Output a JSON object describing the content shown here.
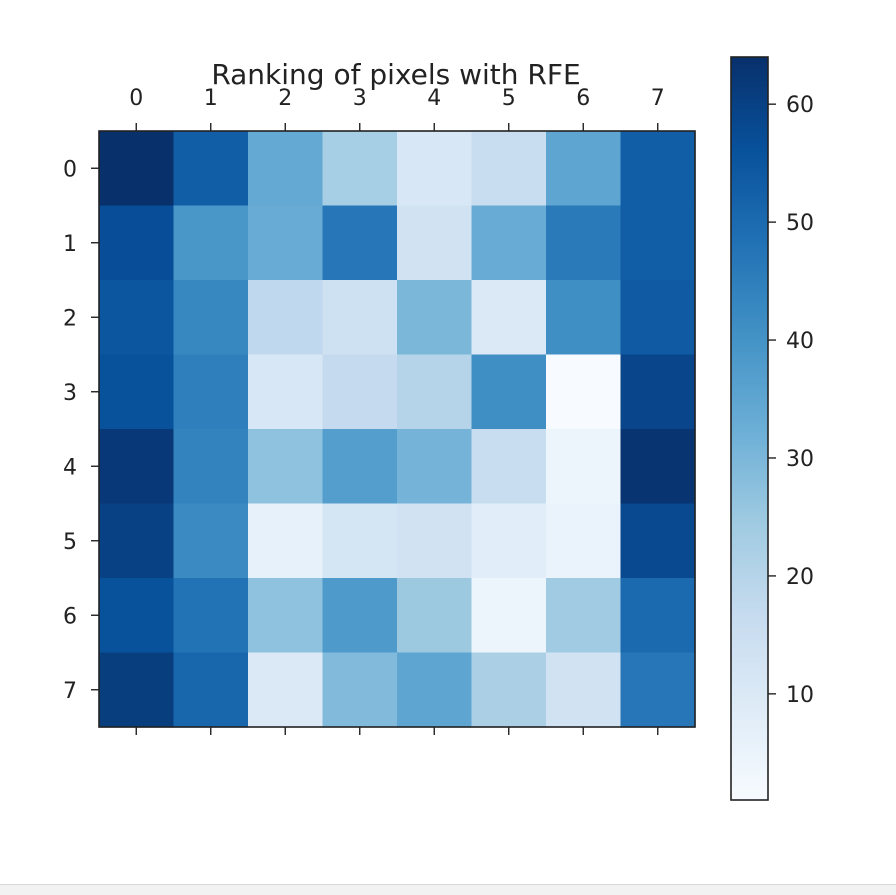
{
  "chart_data": {
    "type": "heatmap",
    "title": "Ranking of pixels with RFE",
    "colormap": "Blues",
    "x_ticks": [
      "0",
      "1",
      "2",
      "3",
      "4",
      "5",
      "6",
      "7"
    ],
    "y_ticks": [
      "0",
      "1",
      "2",
      "3",
      "4",
      "5",
      "6",
      "7"
    ],
    "values": [
      [
        64,
        53,
        34,
        23,
        11,
        16,
        35,
        53
      ],
      [
        57,
        39,
        33,
        47,
        13,
        33,
        46,
        53
      ],
      [
        55,
        43,
        18,
        14,
        30,
        10,
        41,
        54
      ],
      [
        56,
        45,
        11,
        17,
        20,
        41,
        1,
        59
      ],
      [
        62,
        44,
        27,
        37,
        31,
        16,
        4,
        63
      ],
      [
        60,
        42,
        6,
        12,
        13,
        8,
        5,
        58
      ],
      [
        56,
        48,
        27,
        38,
        25,
        4,
        24,
        50
      ],
      [
        61,
        51,
        10,
        29,
        35,
        22,
        13,
        47
      ]
    ],
    "colorbar": {
      "min": 1,
      "max": 64,
      "ticks": [
        "10",
        "20",
        "30",
        "40",
        "50",
        "60"
      ]
    }
  }
}
